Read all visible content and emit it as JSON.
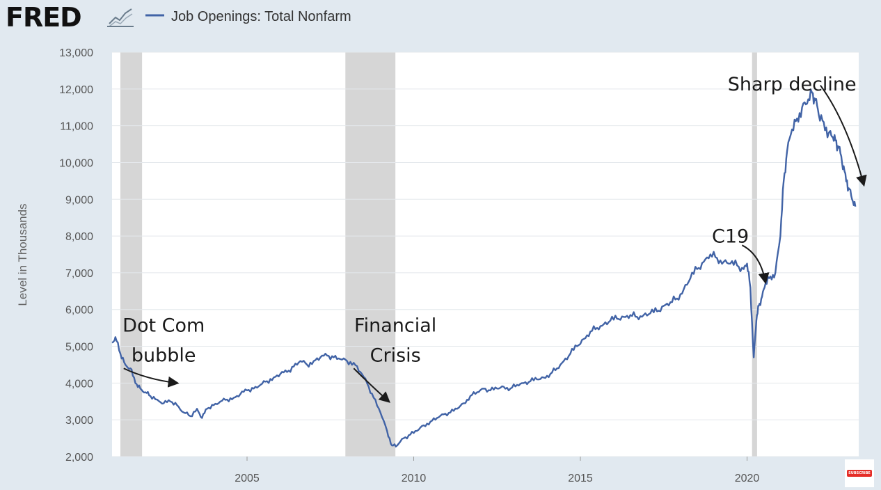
{
  "header": {
    "logo_text": "FRED",
    "legend_label": "Job Openings: Total Nonfarm"
  },
  "colors": {
    "series": "#4163a6",
    "recession": "#d6d6d6",
    "plot_bg": "#ffffff",
    "page_bg": "#e1e9f0",
    "annotation": "#1a1a1a"
  },
  "icons": [
    "fred-logo",
    "chart-icon",
    "subscribe-icon"
  ],
  "subscribe_label": "SUBSCRIBE",
  "chart_data": {
    "type": "line",
    "title": "Job Openings: Total Nonfarm",
    "xlabel": "",
    "ylabel": "Level in Thousands",
    "xlim": [
      2000.95,
      2023.35
    ],
    "ylim": [
      2000,
      13000
    ],
    "yticks": [
      {
        "value": 2000,
        "label": "2,000"
      },
      {
        "value": 3000,
        "label": "3,000"
      },
      {
        "value": 4000,
        "label": "4,000"
      },
      {
        "value": 5000,
        "label": "5,000"
      },
      {
        "value": 6000,
        "label": "6,000"
      },
      {
        "value": 7000,
        "label": "7,000"
      },
      {
        "value": 8000,
        "label": "8,000"
      },
      {
        "value": 9000,
        "label": "9,000"
      },
      {
        "value": 10000,
        "label": "10,000"
      },
      {
        "value": 11000,
        "label": "11,000"
      },
      {
        "value": 12000,
        "label": "12,000"
      },
      {
        "value": 13000,
        "label": "13,000"
      }
    ],
    "xticks": [
      {
        "value": 2005,
        "label": "2005"
      },
      {
        "value": 2010,
        "label": "2010"
      },
      {
        "value": 2015,
        "label": "2015"
      },
      {
        "value": 2020,
        "label": "2020"
      }
    ],
    "grid": true,
    "recessions": [
      [
        2001.2,
        2001.85
      ],
      [
        2007.95,
        2009.45
      ],
      [
        2020.15,
        2020.3
      ]
    ],
    "series": [
      {
        "name": "Job Openings: Total Nonfarm",
        "x": [
          2000.95,
          2001.05,
          2001.2,
          2001.35,
          2001.5,
          2001.65,
          2001.8,
          2001.95,
          2002.1,
          2002.3,
          2002.5,
          2002.7,
          2002.9,
          2003.1,
          2003.3,
          2003.5,
          2003.65,
          2003.8,
          2004.0,
          2004.2,
          2004.4,
          2004.6,
          2004.8,
          2005.0,
          2005.2,
          2005.4,
          2005.6,
          2005.8,
          2006.0,
          2006.2,
          2006.4,
          2006.6,
          2006.8,
          2007.0,
          2007.2,
          2007.4,
          2007.6,
          2007.8,
          2008.0,
          2008.2,
          2008.4,
          2008.6,
          2008.8,
          2009.0,
          2009.2,
          2009.35,
          2009.5,
          2009.7,
          2009.9,
          2010.1,
          2010.3,
          2010.5,
          2010.7,
          2010.9,
          2011.1,
          2011.3,
          2011.5,
          2011.7,
          2011.9,
          2012.1,
          2012.3,
          2012.5,
          2012.7,
          2012.9,
          2013.1,
          2013.3,
          2013.5,
          2013.7,
          2013.9,
          2014.1,
          2014.3,
          2014.5,
          2014.7,
          2014.9,
          2015.1,
          2015.3,
          2015.5,
          2015.7,
          2015.9,
          2016.1,
          2016.3,
          2016.5,
          2016.7,
          2016.9,
          2017.1,
          2017.3,
          2017.5,
          2017.7,
          2017.9,
          2018.1,
          2018.3,
          2018.5,
          2018.7,
          2018.9,
          2019.1,
          2019.3,
          2019.5,
          2019.7,
          2019.9,
          2020.0,
          2020.1,
          2020.2,
          2020.28,
          2020.35,
          2020.45,
          2020.55,
          2020.7,
          2020.85,
          2021.0,
          2021.1,
          2021.2,
          2021.35,
          2021.5,
          2021.65,
          2021.8,
          2021.95,
          2022.05,
          2022.15,
          2022.3,
          2022.45,
          2022.55,
          2022.65,
          2022.75,
          2022.85,
          2022.95,
          2023.05,
          2023.15,
          2023.25
        ],
        "values": [
          5100,
          5250,
          4800,
          4500,
          4400,
          4000,
          3850,
          3750,
          3650,
          3550,
          3450,
          3500,
          3400,
          3200,
          3100,
          3300,
          3050,
          3300,
          3400,
          3500,
          3550,
          3600,
          3700,
          3800,
          3850,
          3950,
          4050,
          4150,
          4250,
          4300,
          4450,
          4600,
          4500,
          4600,
          4700,
          4750,
          4700,
          4650,
          4600,
          4550,
          4300,
          4000,
          3600,
          3200,
          2700,
          2300,
          2300,
          2500,
          2600,
          2700,
          2850,
          2950,
          3050,
          3150,
          3200,
          3300,
          3450,
          3650,
          3750,
          3850,
          3800,
          3850,
          3900,
          3850,
          3950,
          4000,
          4050,
          4100,
          4150,
          4250,
          4400,
          4600,
          4800,
          5000,
          5200,
          5400,
          5500,
          5600,
          5700,
          5750,
          5800,
          5850,
          5800,
          5850,
          5900,
          5950,
          6100,
          6200,
          6300,
          6550,
          6850,
          7100,
          7300,
          7500,
          7400,
          7300,
          7250,
          7200,
          7100,
          7250,
          6600,
          4700,
          5700,
          6100,
          6350,
          6700,
          6900,
          7000,
          8000,
          9500,
          10300,
          10900,
          11200,
          11500,
          11600,
          11900,
          11700,
          11300,
          11100,
          10800,
          10700,
          10600,
          10400,
          10000,
          9700,
          9300,
          9000,
          8800
        ]
      }
    ],
    "annotations": [
      {
        "text": "Dot Com",
        "x": 2002.5,
        "y": 5400
      },
      {
        "text": "bubble",
        "x": 2002.5,
        "y": 4580
      },
      {
        "text": "Financial",
        "x": 2009.45,
        "y": 5400
      },
      {
        "text": "Crisis",
        "x": 2009.45,
        "y": 4580
      },
      {
        "text": "C19",
        "x": 2019.5,
        "y": 7820
      },
      {
        "text": "Sharp decline",
        "x": 2021.35,
        "y": 11960
      }
    ],
    "arrows": [
      {
        "from": [
          2001.3,
          4400
        ],
        "ctrl": [
          2002.0,
          4100
        ],
        "to": [
          2002.9,
          4000
        ]
      },
      {
        "from": [
          2008.2,
          4400
        ],
        "ctrl": [
          2008.7,
          3950
        ],
        "to": [
          2009.25,
          3500
        ]
      },
      {
        "from": [
          2019.85,
          7750
        ],
        "ctrl": [
          2020.4,
          7500
        ],
        "to": [
          2020.55,
          6750
        ]
      },
      {
        "from": [
          2022.2,
          12100
        ],
        "ctrl": [
          2023.0,
          11100
        ],
        "to": [
          2023.5,
          9400
        ]
      }
    ]
  }
}
